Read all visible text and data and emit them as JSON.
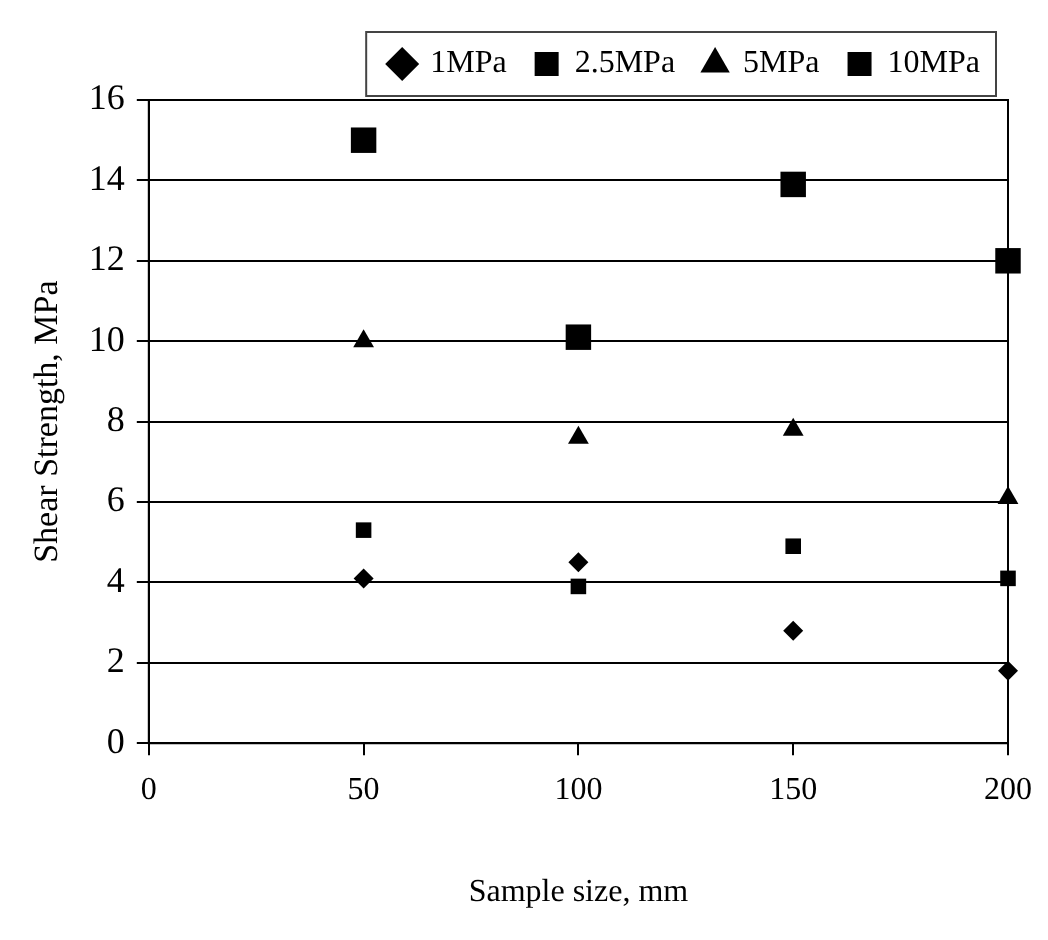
{
  "chart_data": {
    "type": "scatter",
    "xlabel": "Sample size, mm",
    "ylabel": "Shear Strength, MPa",
    "x": [
      50,
      100,
      150,
      200
    ],
    "series": [
      {
        "name": "1MPa",
        "color": "#000000",
        "marker": "diamond",
        "values": [
          4.1,
          4.5,
          2.8,
          1.8
        ]
      },
      {
        "name": "2.5MPa",
        "color": "#000000",
        "marker": "square",
        "values": [
          5.3,
          3.9,
          4.9,
          4.1
        ]
      },
      {
        "name": "5MPa",
        "color": "#000000",
        "marker": "triangle",
        "values": [
          10,
          7.6,
          7.8,
          6.1
        ]
      },
      {
        "name": "10MPa",
        "color": "#000000",
        "marker": "square",
        "values": [
          15,
          10.1,
          13.9,
          12
        ]
      }
    ],
    "xlim": [
      0,
      200
    ],
    "xticks": [
      0,
      50,
      100,
      150,
      200
    ],
    "ylim": [
      0,
      16
    ],
    "yticks": [
      0,
      2,
      4,
      6,
      8,
      10,
      12,
      14,
      16
    ],
    "grid": "y",
    "legend": "top"
  }
}
